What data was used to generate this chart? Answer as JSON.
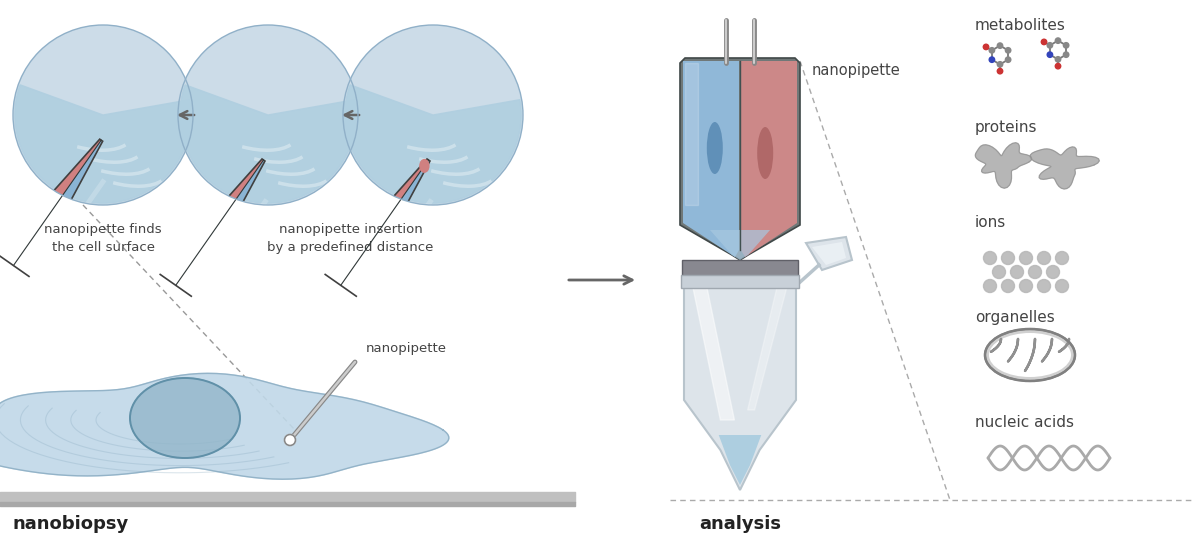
{
  "bg_color": "#ffffff",
  "title_nanobiopsy": "nanobiopsy",
  "title_analysis": "analysis",
  "label_nanopipette_top": "nanopipette",
  "label_nanopipette_cell": "nanopipette",
  "label_finds": "nanopipette finds\nthe cell surface",
  "label_insertion": "nanopipette insertion\nby a predefined distance",
  "analytes": [
    "metabolites",
    "proteins",
    "ions",
    "organelles",
    "nucleic acids"
  ],
  "blue_barrel": "#8fb8d8",
  "red_barrel": "#d48a8a",
  "blue_dark": "#5a88a8",
  "red_dark": "#a85858",
  "cell_fill": "#b8d4e4",
  "cell_outline": "#7aabca",
  "nucleus_fill": "#85a8c0",
  "ground_color": "#c8c8c8",
  "gray_text": "#444444",
  "arrow_color": "#666666",
  "dashed_color": "#999999",
  "tube_fill": "#f0f4f8",
  "tube_outline": "#c8d0d8",
  "liquid_color": "#a8ccdf"
}
